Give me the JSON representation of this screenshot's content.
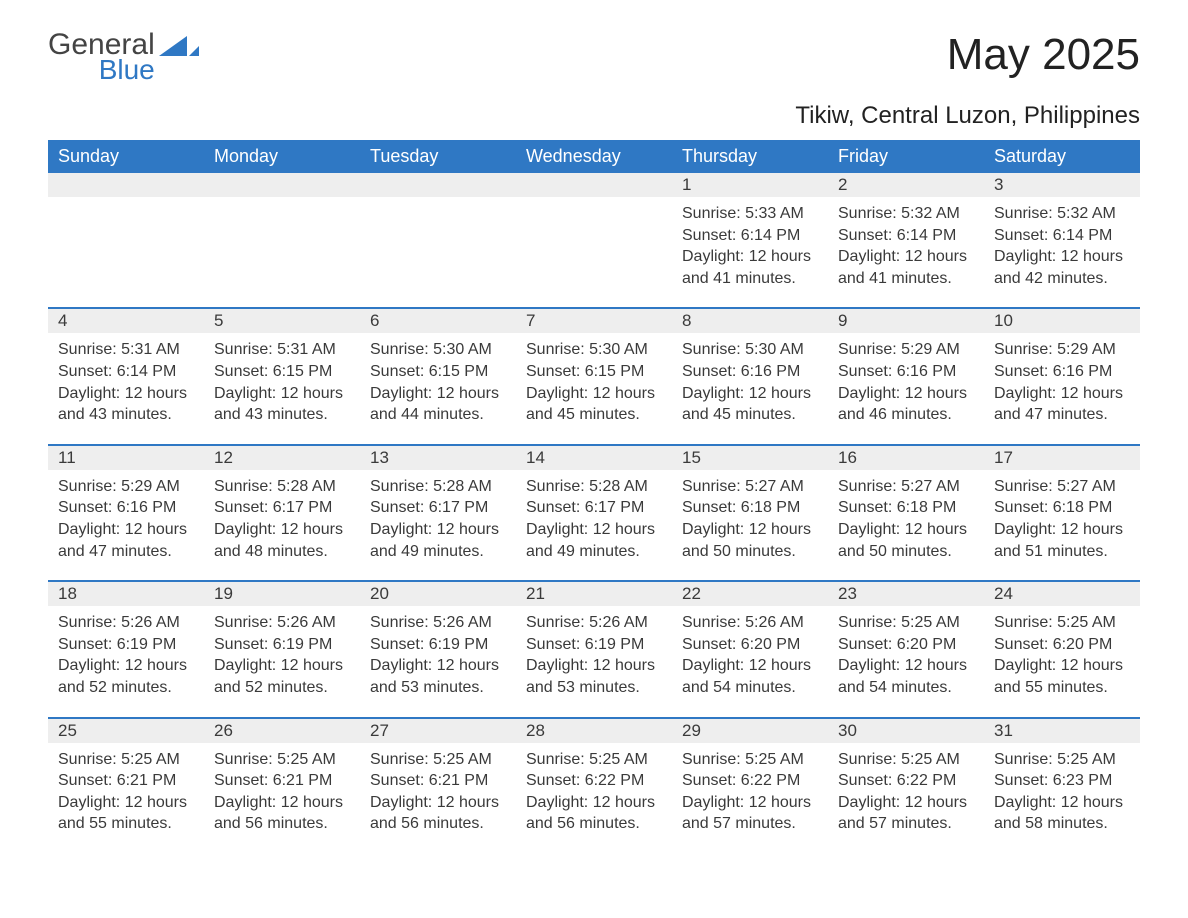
{
  "brand": {
    "general": "General",
    "blue": "Blue",
    "accent_color": "#2f78c4"
  },
  "title": {
    "month_year": "May 2025",
    "location": "Tikiw, Central Luzon, Philippines"
  },
  "calendar": {
    "type": "table",
    "columns": [
      "Sunday",
      "Monday",
      "Tuesday",
      "Wednesday",
      "Thursday",
      "Friday",
      "Saturday"
    ],
    "header_bg": "#2f78c4",
    "header_text_color": "#ffffff",
    "week_border_color": "#2f78c4",
    "daynum_bg": "#eeeeee",
    "body_text_color": "#3a3a3a",
    "header_fontsize": 18,
    "daynum_fontsize": 17,
    "body_fontsize": 16,
    "weeks": [
      [
        {
          "day": "",
          "sunrise": "",
          "sunset": "",
          "daylight": ""
        },
        {
          "day": "",
          "sunrise": "",
          "sunset": "",
          "daylight": ""
        },
        {
          "day": "",
          "sunrise": "",
          "sunset": "",
          "daylight": ""
        },
        {
          "day": "",
          "sunrise": "",
          "sunset": "",
          "daylight": ""
        },
        {
          "day": "1",
          "sunrise": "Sunrise: 5:33 AM",
          "sunset": "Sunset: 6:14 PM",
          "daylight": "Daylight: 12 hours and 41 minutes."
        },
        {
          "day": "2",
          "sunrise": "Sunrise: 5:32 AM",
          "sunset": "Sunset: 6:14 PM",
          "daylight": "Daylight: 12 hours and 41 minutes."
        },
        {
          "day": "3",
          "sunrise": "Sunrise: 5:32 AM",
          "sunset": "Sunset: 6:14 PM",
          "daylight": "Daylight: 12 hours and 42 minutes."
        }
      ],
      [
        {
          "day": "4",
          "sunrise": "Sunrise: 5:31 AM",
          "sunset": "Sunset: 6:14 PM",
          "daylight": "Daylight: 12 hours and 43 minutes."
        },
        {
          "day": "5",
          "sunrise": "Sunrise: 5:31 AM",
          "sunset": "Sunset: 6:15 PM",
          "daylight": "Daylight: 12 hours and 43 minutes."
        },
        {
          "day": "6",
          "sunrise": "Sunrise: 5:30 AM",
          "sunset": "Sunset: 6:15 PM",
          "daylight": "Daylight: 12 hours and 44 minutes."
        },
        {
          "day": "7",
          "sunrise": "Sunrise: 5:30 AM",
          "sunset": "Sunset: 6:15 PM",
          "daylight": "Daylight: 12 hours and 45 minutes."
        },
        {
          "day": "8",
          "sunrise": "Sunrise: 5:30 AM",
          "sunset": "Sunset: 6:16 PM",
          "daylight": "Daylight: 12 hours and 45 minutes."
        },
        {
          "day": "9",
          "sunrise": "Sunrise: 5:29 AM",
          "sunset": "Sunset: 6:16 PM",
          "daylight": "Daylight: 12 hours and 46 minutes."
        },
        {
          "day": "10",
          "sunrise": "Sunrise: 5:29 AM",
          "sunset": "Sunset: 6:16 PM",
          "daylight": "Daylight: 12 hours and 47 minutes."
        }
      ],
      [
        {
          "day": "11",
          "sunrise": "Sunrise: 5:29 AM",
          "sunset": "Sunset: 6:16 PM",
          "daylight": "Daylight: 12 hours and 47 minutes."
        },
        {
          "day": "12",
          "sunrise": "Sunrise: 5:28 AM",
          "sunset": "Sunset: 6:17 PM",
          "daylight": "Daylight: 12 hours and 48 minutes."
        },
        {
          "day": "13",
          "sunrise": "Sunrise: 5:28 AM",
          "sunset": "Sunset: 6:17 PM",
          "daylight": "Daylight: 12 hours and 49 minutes."
        },
        {
          "day": "14",
          "sunrise": "Sunrise: 5:28 AM",
          "sunset": "Sunset: 6:17 PM",
          "daylight": "Daylight: 12 hours and 49 minutes."
        },
        {
          "day": "15",
          "sunrise": "Sunrise: 5:27 AM",
          "sunset": "Sunset: 6:18 PM",
          "daylight": "Daylight: 12 hours and 50 minutes."
        },
        {
          "day": "16",
          "sunrise": "Sunrise: 5:27 AM",
          "sunset": "Sunset: 6:18 PM",
          "daylight": "Daylight: 12 hours and 50 minutes."
        },
        {
          "day": "17",
          "sunrise": "Sunrise: 5:27 AM",
          "sunset": "Sunset: 6:18 PM",
          "daylight": "Daylight: 12 hours and 51 minutes."
        }
      ],
      [
        {
          "day": "18",
          "sunrise": "Sunrise: 5:26 AM",
          "sunset": "Sunset: 6:19 PM",
          "daylight": "Daylight: 12 hours and 52 minutes."
        },
        {
          "day": "19",
          "sunrise": "Sunrise: 5:26 AM",
          "sunset": "Sunset: 6:19 PM",
          "daylight": "Daylight: 12 hours and 52 minutes."
        },
        {
          "day": "20",
          "sunrise": "Sunrise: 5:26 AM",
          "sunset": "Sunset: 6:19 PM",
          "daylight": "Daylight: 12 hours and 53 minutes."
        },
        {
          "day": "21",
          "sunrise": "Sunrise: 5:26 AM",
          "sunset": "Sunset: 6:19 PM",
          "daylight": "Daylight: 12 hours and 53 minutes."
        },
        {
          "day": "22",
          "sunrise": "Sunrise: 5:26 AM",
          "sunset": "Sunset: 6:20 PM",
          "daylight": "Daylight: 12 hours and 54 minutes."
        },
        {
          "day": "23",
          "sunrise": "Sunrise: 5:25 AM",
          "sunset": "Sunset: 6:20 PM",
          "daylight": "Daylight: 12 hours and 54 minutes."
        },
        {
          "day": "24",
          "sunrise": "Sunrise: 5:25 AM",
          "sunset": "Sunset: 6:20 PM",
          "daylight": "Daylight: 12 hours and 55 minutes."
        }
      ],
      [
        {
          "day": "25",
          "sunrise": "Sunrise: 5:25 AM",
          "sunset": "Sunset: 6:21 PM",
          "daylight": "Daylight: 12 hours and 55 minutes."
        },
        {
          "day": "26",
          "sunrise": "Sunrise: 5:25 AM",
          "sunset": "Sunset: 6:21 PM",
          "daylight": "Daylight: 12 hours and 56 minutes."
        },
        {
          "day": "27",
          "sunrise": "Sunrise: 5:25 AM",
          "sunset": "Sunset: 6:21 PM",
          "daylight": "Daylight: 12 hours and 56 minutes."
        },
        {
          "day": "28",
          "sunrise": "Sunrise: 5:25 AM",
          "sunset": "Sunset: 6:22 PM",
          "daylight": "Daylight: 12 hours and 56 minutes."
        },
        {
          "day": "29",
          "sunrise": "Sunrise: 5:25 AM",
          "sunset": "Sunset: 6:22 PM",
          "daylight": "Daylight: 12 hours and 57 minutes."
        },
        {
          "day": "30",
          "sunrise": "Sunrise: 5:25 AM",
          "sunset": "Sunset: 6:22 PM",
          "daylight": "Daylight: 12 hours and 57 minutes."
        },
        {
          "day": "31",
          "sunrise": "Sunrise: 5:25 AM",
          "sunset": "Sunset: 6:23 PM",
          "daylight": "Daylight: 12 hours and 58 minutes."
        }
      ]
    ]
  }
}
